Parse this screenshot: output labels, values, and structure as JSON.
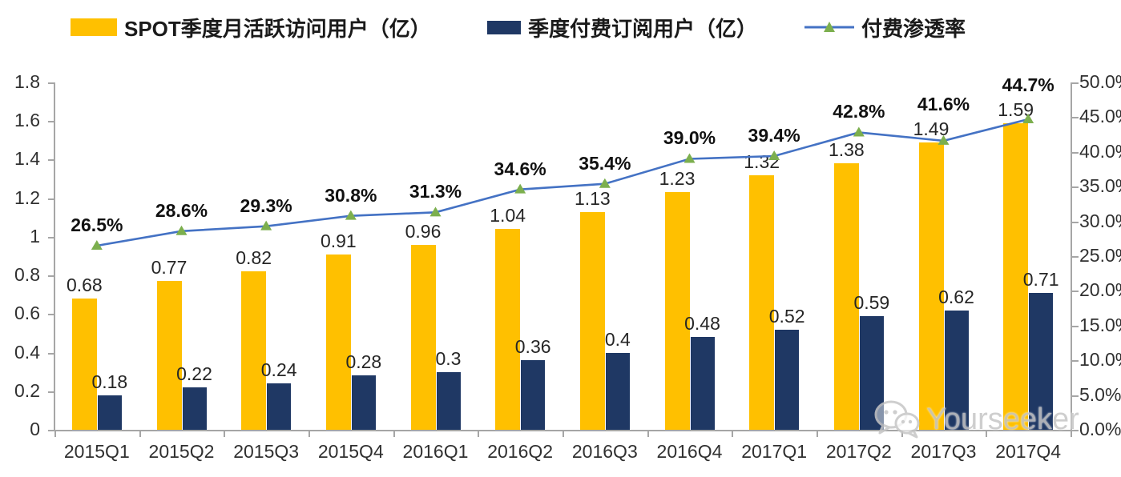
{
  "legend": {
    "items": [
      {
        "label": "SPOT季度月活跃访问用户（亿）",
        "swatch_color": "#FFC000",
        "type": "bar"
      },
      {
        "label": "季度付费订阅用户（亿）",
        "swatch_color": "#1F3864",
        "type": "bar"
      },
      {
        "label": "付费渗透率",
        "line_color": "#4472C4",
        "marker_color": "#7CAF4E",
        "type": "line"
      }
    ]
  },
  "watermark": {
    "text": "Yourseeker",
    "icon": "wechat-icon"
  },
  "colors": {
    "mau_bar": "#FFC000",
    "subs_bar": "#1F3864",
    "line": "#4472C4",
    "marker": "#7CAF4E",
    "axis": "#a6a6a6"
  },
  "chart_data": {
    "type": "combo bar+line",
    "categories": [
      "2015Q1",
      "2015Q2",
      "2015Q3",
      "2015Q4",
      "2016Q1",
      "2016Q2",
      "2016Q3",
      "2016Q4",
      "2017Q1",
      "2017Q2",
      "2017Q3",
      "2017Q4"
    ],
    "series": [
      {
        "name": "SPOT季度月活跃访问用户（亿）",
        "type": "bar",
        "axis": "left",
        "color": "#FFC000",
        "values": [
          0.68,
          0.77,
          0.82,
          0.91,
          0.96,
          1.04,
          1.13,
          1.23,
          1.32,
          1.38,
          1.49,
          1.59
        ],
        "labels": [
          "0.68",
          "0.77",
          "0.82",
          "0.91",
          "0.96",
          "1.04",
          "1.13",
          "1.23",
          "1.32",
          "1.38",
          "1.49",
          "1.59"
        ]
      },
      {
        "name": "季度付费订阅用户（亿）",
        "type": "bar",
        "axis": "left",
        "color": "#1F3864",
        "values": [
          0.18,
          0.22,
          0.24,
          0.28,
          0.3,
          0.36,
          0.4,
          0.48,
          0.52,
          0.59,
          0.62,
          0.71
        ],
        "labels": [
          "0.18",
          "0.22",
          "0.24",
          "0.28",
          "0.3",
          "0.36",
          "0.4",
          "0.48",
          "0.52",
          "0.59",
          "0.62",
          "0.71"
        ]
      },
      {
        "name": "付费渗透率",
        "type": "line",
        "axis": "right",
        "color": "#4472C4",
        "marker": "triangle",
        "marker_color": "#7CAF4E",
        "values_percent": [
          26.5,
          28.6,
          29.3,
          30.8,
          31.3,
          34.6,
          35.4,
          39.0,
          39.4,
          42.8,
          41.6,
          44.7
        ],
        "labels": [
          "26.5%",
          "28.6%",
          "29.3%",
          "30.8%",
          "31.3%",
          "34.6%",
          "35.4%",
          "39.0%",
          "39.4%",
          "42.8%",
          "41.6%",
          "44.7%"
        ]
      }
    ],
    "left_axis": {
      "min": 0,
      "max": 1.8,
      "step": 0.2,
      "tick_labels": [
        "0",
        "0.2",
        "0.4",
        "0.6",
        "0.8",
        "1",
        "1.2",
        "1.4",
        "1.6",
        "1.8"
      ]
    },
    "right_axis": {
      "min": 0,
      "max": 50,
      "step": 5,
      "unit": "%",
      "tick_labels": [
        "0.0%",
        "5.0%",
        "10.0%",
        "15.0%",
        "20.0%",
        "25.0%",
        "30.0%",
        "35.0%",
        "40.0%",
        "45.0%",
        "50.0%"
      ]
    },
    "grid": false,
    "legend_position": "top"
  }
}
